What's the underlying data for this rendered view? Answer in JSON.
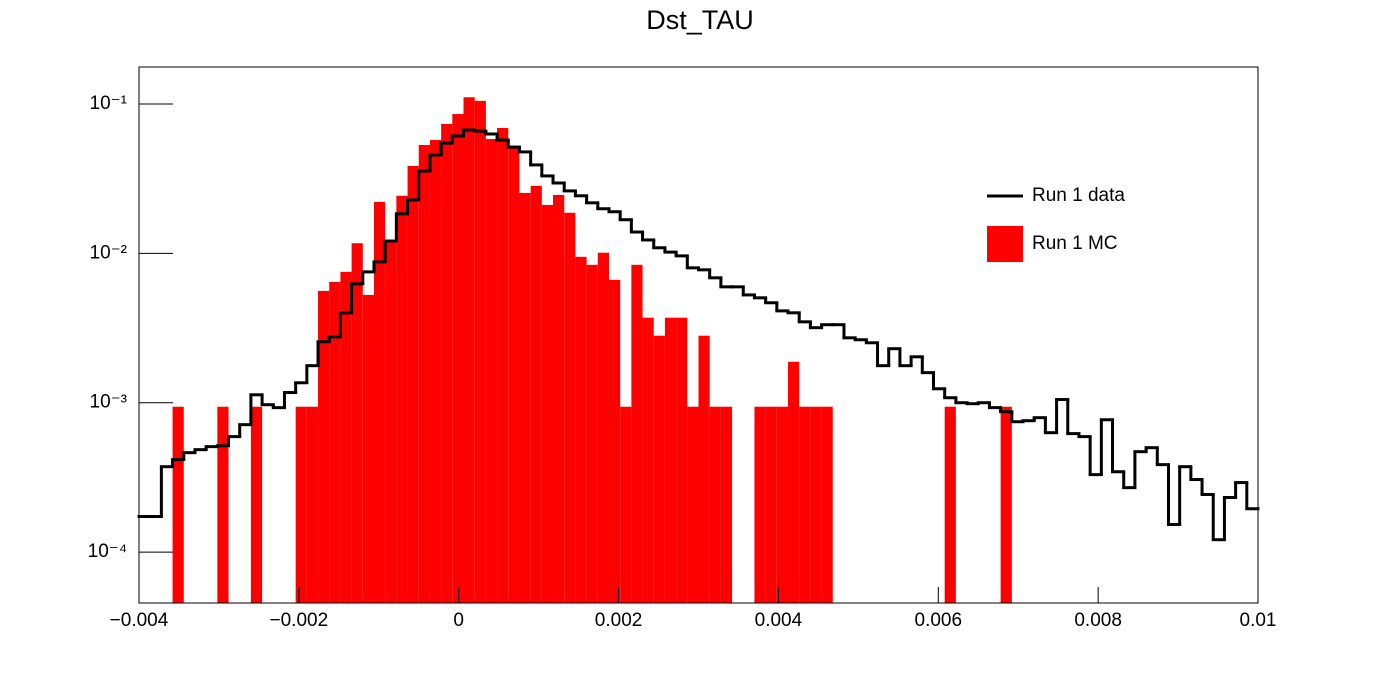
{
  "chart_data": {
    "type": "histogram",
    "title": "Dst_TAU",
    "bins": [
      -0.004,
      -0.00386,
      -0.00372,
      -0.00358,
      -0.00344,
      -0.0033,
      -0.00316,
      -0.00302,
      -0.00288,
      -0.00274,
      -0.0026,
      -0.00246,
      -0.00232,
      -0.00218,
      -0.00204,
      -0.0019,
      -0.00176,
      -0.00162,
      -0.00148,
      -0.00134,
      -0.0012,
      -0.00106,
      -0.00092,
      -0.00078,
      -0.00064,
      -0.0005,
      -0.00036,
      -0.00022,
      -8e-05,
      6e-05,
      0.0002,
      0.00034,
      0.00048,
      0.00062,
      0.00076,
      0.0009,
      0.00104,
      0.00118,
      0.00132,
      0.00146,
      0.0016,
      0.00174,
      0.00188,
      0.00202,
      0.00216,
      0.0023,
      0.00244,
      0.00258,
      0.00272,
      0.00286,
      0.003,
      0.00314,
      0.00328,
      0.00342,
      0.00356,
      0.0037,
      0.00384,
      0.00398,
      0.00412,
      0.00426,
      0.0044,
      0.00454,
      0.00468,
      0.00482,
      0.00496,
      0.0051,
      0.00524,
      0.00538,
      0.00552,
      0.00566,
      0.0058,
      0.00594,
      0.00608,
      0.00622,
      0.00636,
      0.0065,
      0.00664,
      0.00678,
      0.00692,
      0.00706,
      0.0072,
      0.00734,
      0.00748,
      0.00762,
      0.00776,
      0.0079,
      0.00804,
      0.00818,
      0.00832,
      0.00846,
      0.0086,
      0.00874,
      0.00888,
      0.00902,
      0.00916,
      0.0093,
      0.00944,
      0.00958,
      0.00972,
      0.00986,
      0.01
    ],
    "series": [
      {
        "name": "Run 1 MC",
        "color": "#ff0000",
        "style": "fill",
        "values": [
          0,
          0,
          0,
          0.00094,
          0,
          0,
          0,
          0.00094,
          0,
          0,
          0.00094,
          0,
          0,
          0,
          0.00094,
          0.00094,
          0.00561,
          0.00644,
          0.00752,
          0.0117,
          0.00527,
          0.0221,
          0.0123,
          0.0243,
          0.0385,
          0.0532,
          0.0574,
          0.0735,
          0.0857,
          0.111,
          0.105,
          0.0583,
          0.0691,
          0.0524,
          0.0254,
          0.0283,
          0.0211,
          0.0246,
          0.0187,
          0.00948,
          0.00838,
          0.0101,
          0.00665,
          0.00094,
          0.00838,
          0.00371,
          0.00281,
          0.00371,
          0.00371,
          0.00094,
          0.00281,
          0.00094,
          0.00094,
          0,
          0,
          0.00094,
          0.00094,
          0.00094,
          0.00188,
          0.00094,
          0.00094,
          0.00094,
          0,
          0,
          0,
          0,
          0,
          0,
          0,
          0,
          0,
          0,
          0.00094,
          0,
          0,
          0,
          0,
          0.00094,
          0,
          0,
          0,
          0,
          0,
          0,
          0,
          0,
          0,
          0,
          0,
          0,
          0,
          0,
          0,
          0,
          0,
          0,
          0,
          0,
          0,
          0
        ]
      },
      {
        "name": "Run 1 data",
        "color": "#000000",
        "style": "step",
        "values": [
          0.000173,
          0.000173,
          0.000373,
          0.000416,
          0.000463,
          0.000485,
          0.000508,
          0.000515,
          0.000593,
          0.000713,
          0.00113,
          0.00097,
          0.000927,
          0.00117,
          0.00136,
          0.00177,
          0.00256,
          0.00276,
          0.004,
          0.00625,
          0.00752,
          0.00877,
          0.0121,
          0.0184,
          0.0228,
          0.0356,
          0.0456,
          0.0548,
          0.0611,
          0.067,
          0.0659,
          0.063,
          0.0574,
          0.0515,
          0.0478,
          0.0391,
          0.033,
          0.0296,
          0.0262,
          0.0243,
          0.0218,
          0.0199,
          0.019,
          0.0168,
          0.0139,
          0.0123,
          0.0109,
          0.0102,
          0.00962,
          0.008,
          0.00776,
          0.00686,
          0.00597,
          0.00597,
          0.00527,
          0.00504,
          0.00467,
          0.00412,
          0.004,
          0.00348,
          0.00318,
          0.00333,
          0.00333,
          0.00272,
          0.00264,
          0.00252,
          0.00177,
          0.0023,
          0.00177,
          0.00203,
          0.00159,
          0.00124,
          0.00108,
          0.001,
          0.000985,
          0.001,
          0.000927,
          0.000871,
          0.000746,
          0.000758,
          0.000794,
          0.00063,
          0.00105,
          0.000621,
          0.000593,
          0.00033,
          0.000769,
          0.000345,
          0.00027,
          0.00047,
          0.0005,
          0.000385,
          0.000153,
          0.000373,
          0.000306,
          0.000243,
          0.000121,
          0.000232,
          0.000292,
          0.000195
        ]
      }
    ],
    "xlim": [
      -0.004,
      0.01
    ],
    "xticks": [
      {
        "value": -0.004,
        "label": "−0.004"
      },
      {
        "value": -0.002,
        "label": "−0.002"
      },
      0,
      0.002,
      0.004,
      0.006,
      0.008,
      0.01
    ],
    "ylim": [
      4.56e-05,
      0.177
    ],
    "log_y": true,
    "yticks": [
      {
        "value": 0.0001,
        "label": "10⁻⁴"
      },
      {
        "value": 0.001,
        "label": "10⁻³"
      },
      {
        "value": 0.01,
        "label": "10⁻²"
      },
      {
        "value": 0.1,
        "label": "10⁻¹"
      }
    ],
    "grid": false,
    "legend": "upper right"
  }
}
